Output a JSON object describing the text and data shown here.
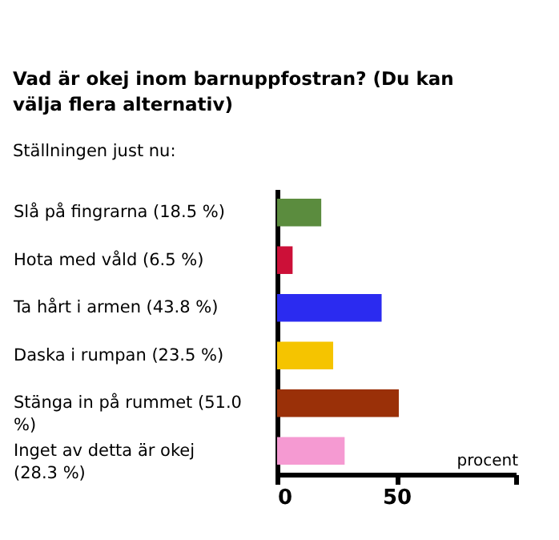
{
  "chart_data": {
    "type": "bar",
    "orientation": "horizontal",
    "title": "Vad är okej inom barnuppfostran? (Du kan välja flera alternativ)",
    "subtitle": "Ställningen just nu:",
    "xlabel": "procent",
    "categories": [
      "Slå på fingrarna (18.5 %)",
      "Hota med våld (6.5 %)",
      "Ta hårt i armen (43.8 %)",
      "Daska i rumpan (23.5 %)",
      "Stänga in på rummet (51.0 %)",
      "Inget av detta är okej (28.3 %)"
    ],
    "values": [
      18.5,
      6.5,
      43.8,
      23.5,
      51.0,
      28.3
    ],
    "colors": [
      "#5b8c3e",
      "#cc1038",
      "#2b2bf0",
      "#f5c400",
      "#9a3008",
      "#f59ad2"
    ],
    "xlim": [
      0,
      100
    ],
    "xticks": [
      0,
      50,
      {
        "value": 100,
        "label": null
      }
    ],
    "grid": false,
    "legend": false
  }
}
